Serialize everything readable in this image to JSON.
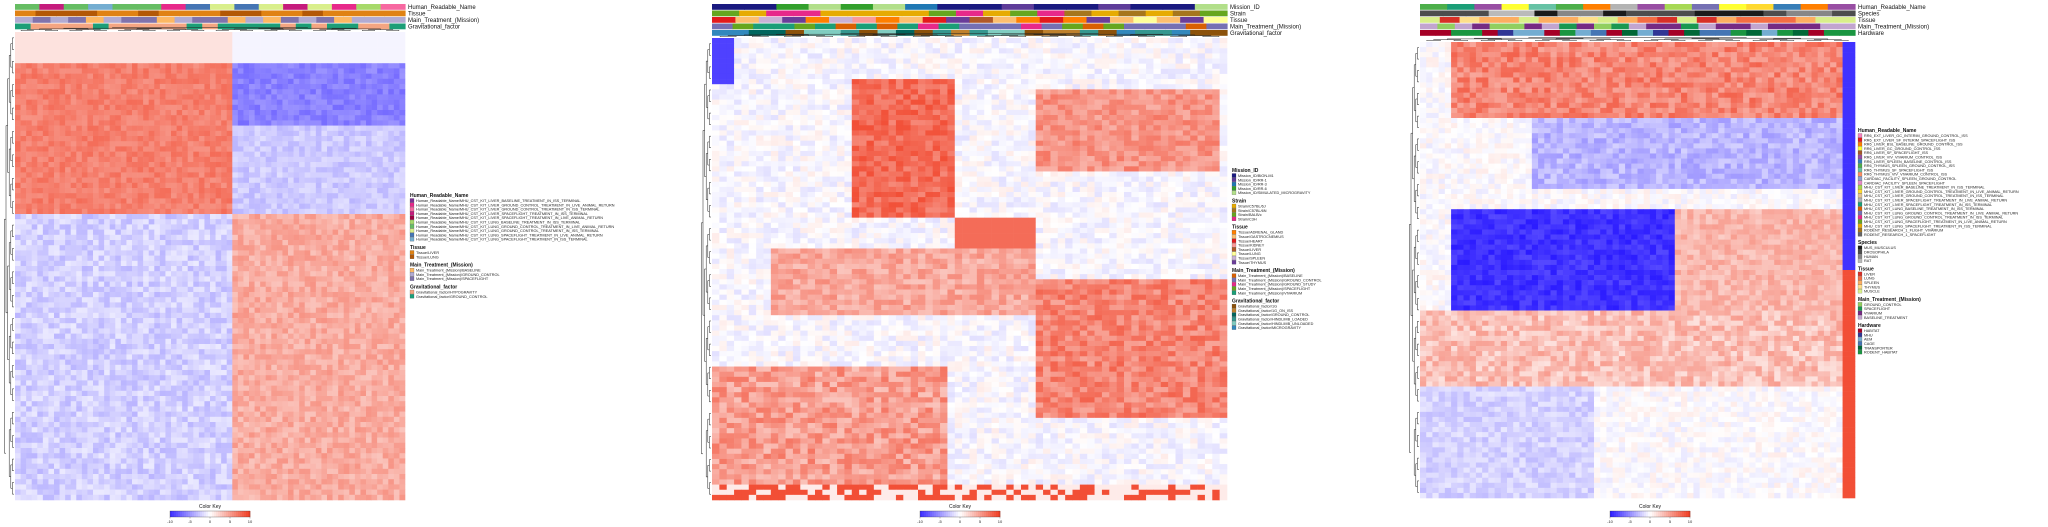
{
  "chart_data": [
    {
      "type": "heatmap",
      "title": "",
      "xlabel": "",
      "ylabel": "",
      "clusters_note": "Top-left dendrogram on columns, left dendrogram on rows; two main row clusters (upregulated block top, downregulated block bottom).",
      "annotation_tracks": [
        "Human_Readable_Name",
        "Tissue",
        "Main_Treatment_(Mission)",
        "Gravitational_factor"
      ],
      "legend": {
        "groups": [
          {
            "title": "Human_Readable_Name",
            "entries": [
              {
                "label": "Human_Readable_Name/MHU_CST_KIT_LIVER_BASELINE_TREATMENT_IN_ISS_TERMINAL",
                "color": "#7b3294"
              },
              {
                "label": "Human_Readable_Name/MHU_CST_KIT_LIVER_GROUND_CONTROL_TREATMENT_IN_LIVE_ANIMAL_RETURN",
                "color": "#e7298a"
              },
              {
                "label": "Human_Readable_Name/MHU_CST_KIT_LIVER_GROUND_CONTROL_TREATMENT_IN_ISS_TERMINAL",
                "color": "#f768a1"
              },
              {
                "label": "Human_Readable_Name/MHU_CST_KIT_LIVER_SPACEFLIGHT_TREATMENT_IN_ISS_TERMINAL",
                "color": "#c51b7d"
              },
              {
                "label": "Human_Readable_Name/MHU_CST_KIT_LIVER_SPACEFLIGHT_TREATMENT_IN_LIVE_ANIMAL_RETURN",
                "color": "#9e0142"
              },
              {
                "label": "Human_Readable_Name/MHU_CST_KIT_LUNG_BASELINE_TREATMENT_IN_ISS_TERMINAL",
                "color": "#a6d96a"
              },
              {
                "label": "Human_Readable_Name/MHU_CST_KIT_LUNG_GROUND_CONTROL_TREATMENT_IN_LIVE_ANIMAL_RETURN",
                "color": "#66bd63"
              },
              {
                "label": "Human_Readable_Name/MHU_CST_KIT_LUNG_GROUND_CONTROL_TREATMENT_IN_ISS_TERMINAL",
                "color": "#d9ef8b"
              },
              {
                "label": "Human_Readable_Name/MHU_CST_KIT_LUNG_SPACEFLIGHT_TREATMENT_IN_LIVE_ANIMAL_RETURN",
                "color": "#4575b4"
              },
              {
                "label": "Human_Readable_Name/MHU_CST_KIT_LUNG_SPACEFLIGHT_TREATMENT_IN_ISS_TERMINAL",
                "color": "#74add1"
              }
            ]
          },
          {
            "title": "Tissue",
            "entries": [
              {
                "label": "Tissue/LIVER",
                "color": "#e08214"
              },
              {
                "label": "Tissue/LUNG",
                "color": "#b35806"
              }
            ]
          },
          {
            "title": "Main_Treatment_(Mission)",
            "entries": [
              {
                "label": "Main_Treatment_(Mission)/BASELINE",
                "color": "#fdb863"
              },
              {
                "label": "Main_Treatment_(Mission)/GROUND_CONTROL",
                "color": "#b2abd2"
              },
              {
                "label": "Main_Treatment_(Mission)/SPACEFLIGHT",
                "color": "#8073ac"
              }
            ]
          },
          {
            "title": "Gravitational_factor",
            "entries": [
              {
                "label": "Gravitational_factor/HYPOGRAVITY",
                "color": "#f4a582"
              },
              {
                "label": "Gravitational_factor/GROUND_CONTROL",
                "color": "#1b9e77"
              }
            ]
          }
        ]
      },
      "color_key": {
        "title": "Color Key",
        "ticks": [
          -10,
          -5,
          0,
          5,
          10
        ],
        "low": "#3b2cff",
        "mid": "#ffffff",
        "high": "#f03b20"
      }
    },
    {
      "type": "heatmap",
      "title": "",
      "xlabel": "",
      "ylabel": "",
      "annotation_tracks": [
        "Mission_ID",
        "Strain",
        "Tissue",
        "Main_Treatment_(Mission)",
        "Gravitational_factor"
      ],
      "legend": {
        "groups": [
          {
            "title": "Mission_ID",
            "entries": [
              {
                "label": "Mission_ID/BION-M1",
                "color": "#1a1a80"
              },
              {
                "label": "Mission_ID/RR-1",
                "color": "#5e3c99"
              },
              {
                "label": "Mission_ID/RR-3",
                "color": "#1f78b4"
              },
              {
                "label": "Mission_ID/RR-6",
                "color": "#33a02c"
              },
              {
                "label": "Mission_ID/SIMULATED_MICROGRAVITY",
                "color": "#b2df8a"
              }
            ]
          },
          {
            "title": "Strain",
            "entries": [
              {
                "label": "Strain/C57BL/6J",
                "color": "#e6ab02"
              },
              {
                "label": "Strain/C57BL/6N",
                "color": "#a6761d"
              },
              {
                "label": "Strain/BALB/c",
                "color": "#66a61e"
              },
              {
                "label": "Strain/C3H",
                "color": "#e7298a"
              }
            ]
          },
          {
            "title": "Tissue",
            "entries": [
              {
                "label": "Tissue/ADRENAL_GLAND",
                "color": "#ff7f00"
              },
              {
                "label": "Tissue/GASTROCNEMIUS",
                "color": "#fdbf6f"
              },
              {
                "label": "Tissue/HEART",
                "color": "#e31a1c"
              },
              {
                "label": "Tissue/KIDNEY",
                "color": "#fb9a99"
              },
              {
                "label": "Tissue/LIVER",
                "color": "#b15928"
              },
              {
                "label": "Tissue/LUNG",
                "color": "#ffff99"
              },
              {
                "label": "Tissue/SPLEEN",
                "color": "#cab2d6"
              },
              {
                "label": "Tissue/THYMUS",
                "color": "#6a3d9a"
              }
            ]
          },
          {
            "title": "Main_Treatment_(Mission)",
            "entries": [
              {
                "label": "Main_Treatment_(Mission)/BASELINE",
                "color": "#d95f02"
              },
              {
                "label": "Main_Treatment_(Mission)/GROUND_CONTROL",
                "color": "#7570b3"
              },
              {
                "label": "Main_Treatment_(Mission)/GROUND_STUDY",
                "color": "#e7298a"
              },
              {
                "label": "Main_Treatment_(Mission)/SPACEFLIGHT",
                "color": "#66a61e"
              },
              {
                "label": "Main_Treatment_(Mission)/VIVARIUM",
                "color": "#1b9e77"
              }
            ]
          },
          {
            "title": "Gravitational_factor",
            "entries": [
              {
                "label": "Gravitational_factor/1G",
                "color": "#8c510a"
              },
              {
                "label": "Gravitational_factor/1G_ON_ISS",
                "color": "#bf812d"
              },
              {
                "label": "Gravitational_factor/GROUND_CONTROL",
                "color": "#01665e"
              },
              {
                "label": "Gravitational_factor/HINDLIMB_LOADED",
                "color": "#35978f"
              },
              {
                "label": "Gravitational_factor/HINDLIMB_UNLOADED",
                "color": "#80cdc1"
              },
              {
                "label": "Gravitational_factor/MICROGRAVITY",
                "color": "#3288bd"
              }
            ]
          }
        ]
      },
      "color_key": {
        "title": "Color Key",
        "ticks": [
          -10,
          -5,
          0,
          5,
          10
        ],
        "low": "#3b2cff",
        "mid": "#ffffff",
        "high": "#f03b20"
      }
    },
    {
      "type": "heatmap",
      "title": "",
      "xlabel": "",
      "ylabel": "",
      "annotation_tracks": [
        "Human_Readable_Name",
        "Species",
        "Tissue",
        "Main_Treatment_(Mission)",
        "Hardware"
      ],
      "legend": {
        "groups": [
          {
            "title": "Human_Readable_Name",
            "entries": [
              {
                "label": "RR6_EXT_LIVER_GC_INTERIM_GROUND_CONTROL_ISS",
                "color": "#f781bf"
              },
              {
                "label": "RR6_EXT_LIVER_SF_INTERIM_SPACEFLIGHT_ISS",
                "color": "#e41a1c"
              },
              {
                "label": "RR6_LIVER_BSL_BASELINE_GROUND_CONTROL_ISS",
                "color": "#ff7f00"
              },
              {
                "label": "RR6_LIVER_GC_GROUND_CONTROL_ISS",
                "color": "#ffff33"
              },
              {
                "label": "RR6_LIVER_SF_SPACEFLIGHT_ISS",
                "color": "#a65628"
              },
              {
                "label": "RR6_LIVER_VIV_VIVARIUM_CONTROL_ISS",
                "color": "#984ea3"
              },
              {
                "label": "RR6_LIVER_SPLEEN_BASELINE_CONTROL_ISS",
                "color": "#377eb8"
              },
              {
                "label": "RR6_THYMUS_SPLEEN_GROUND_CONTROL_ISS",
                "color": "#4daf4a"
              },
              {
                "label": "RR6_THYMUS_SF_SPACEFLIGHT_ISS",
                "color": "#66c2a5"
              },
              {
                "label": "RR6_THYMUS_VIV_VIVARIUM_CONTROL_ISS",
                "color": "#fc8d62"
              },
              {
                "label": "CARDIAC_FACILITY_SPLEEN_GROUND_CONTROL",
                "color": "#8da0cb"
              },
              {
                "label": "CARDIAC_FACILITY_SPLEEN_SPACEFLIGHT",
                "color": "#e78ac3"
              },
              {
                "label": "MHU_CST_KIT_LIVER_BASELINE_TREATMENT_IN_ISS_TERMINAL",
                "color": "#a6d854"
              },
              {
                "label": "MHU_CST_KIT_LIVER_GROUND_CONTROL_TREATMENT_IN_LIVE_ANIMAL_RETURN",
                "color": "#ffd92f"
              },
              {
                "label": "MHU_CST_KIT_LIVER_GROUND_CONTROL_TREATMENT_IN_ISS_TERMINAL",
                "color": "#e5c494"
              },
              {
                "label": "MHU_CST_KIT_LIVER_SPACEFLIGHT_TREATMENT_IN_LIVE_ANIMAL_RETURN",
                "color": "#b3b3b3"
              },
              {
                "label": "MHU_CST_KIT_LIVER_SPACEFLIGHT_TREATMENT_IN_ISS_TERMINAL",
                "color": "#1b9e77"
              },
              {
                "label": "MHU_CST_KIT_LUNG_BASELINE_TREATMENT_IN_ISS_TERMINAL",
                "color": "#d95f02"
              },
              {
                "label": "MHU_CST_KIT_LUNG_GROUND_CONTROL_TREATMENT_IN_LIVE_ANIMAL_RETURN",
                "color": "#7570b3"
              },
              {
                "label": "MHU_CST_KIT_LUNG_GROUND_CONTROL_TREATMENT_IN_ISS_TERMINAL",
                "color": "#e7298a"
              },
              {
                "label": "MHU_CST_KIT_LUNG_SPACEFLIGHT_TREATMENT_IN_LIVE_ANIMAL_RETURN",
                "color": "#66a61e"
              },
              {
                "label": "MHU_CST_KIT_LUNG_SPACEFLIGHT_TREATMENT_IN_ISS_TERMINAL",
                "color": "#e6ab02"
              },
              {
                "label": "RODENT_RESEARCH_1_FLIGHT_VIVARIUM",
                "color": "#a6761d"
              },
              {
                "label": "RODENT_RESEARCH_1_SPACEFLIGHT",
                "color": "#666666"
              }
            ]
          },
          {
            "title": "Species",
            "entries": [
              {
                "label": "MUS_MUSCULUS",
                "color": "#1b1b1b"
              },
              {
                "label": "DROSOPHILA",
                "color": "#4d4d4d"
              },
              {
                "label": "HUMAN",
                "color": "#878787"
              },
              {
                "label": "RAT",
                "color": "#bababa"
              }
            ]
          },
          {
            "title": "Tissue",
            "entries": [
              {
                "label": "LIVER",
                "color": "#d73027"
              },
              {
                "label": "LUNG",
                "color": "#f46d43"
              },
              {
                "label": "SPLEEN",
                "color": "#fdae61"
              },
              {
                "label": "THYMUS",
                "color": "#fee08b"
              },
              {
                "label": "MUSCLE",
                "color": "#d9ef8b"
              }
            ]
          },
          {
            "title": "Main_Treatment_(Mission)",
            "entries": [
              {
                "label": "GROUND_CONTROL",
                "color": "#91cf60"
              },
              {
                "label": "SPACEFLIGHT",
                "color": "#1a9850"
              },
              {
                "label": "VIVARIUM",
                "color": "#762a83"
              },
              {
                "label": "BASELINE_TREATMENT",
                "color": "#c2a5cf"
              }
            ]
          },
          {
            "title": "Hardware",
            "entries": [
              {
                "label": "HABITAT",
                "color": "#a50026"
              },
              {
                "label": "MHU",
                "color": "#313695"
              },
              {
                "label": "AEM",
                "color": "#74add1"
              },
              {
                "label": "CAGE",
                "color": "#4575b4"
              },
              {
                "label": "TRANSPORTER",
                "color": "#006837"
              },
              {
                "label": "RODENT_HABITAT",
                "color": "#1a9641"
              }
            ]
          }
        ]
      },
      "color_key": {
        "title": "Color Key",
        "ticks": [
          -10,
          -5,
          0,
          5,
          10
        ],
        "low": "#2b1bff",
        "mid": "#ffffff",
        "high": "#f03b20"
      }
    }
  ]
}
